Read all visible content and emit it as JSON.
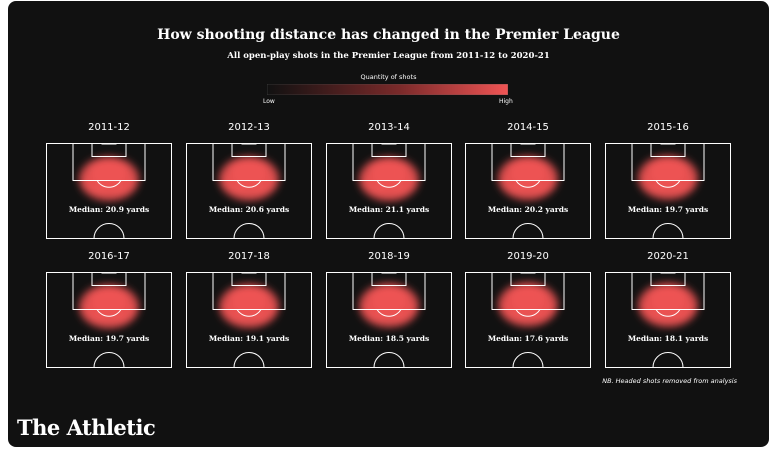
{
  "title": "How shooting distance has changed in the Premier League",
  "subtitle": "All open-play shots in the Premier League from 2011-12 to 2020-21",
  "legend": {
    "title": "Quantity of shots",
    "low_label": "Low",
    "high_label": "High",
    "color_low": "#111111",
    "color_high": "#f05454"
  },
  "chart_data": {
    "type": "heatmap",
    "panels": [
      {
        "season": "2011-12",
        "median_label": "Median: 20.9 yards",
        "median_yards": 20.9
      },
      {
        "season": "2012-13",
        "median_label": "Median: 20.6 yards",
        "median_yards": 20.6
      },
      {
        "season": "2013-14",
        "median_label": "Median: 21.1 yards",
        "median_yards": 21.1
      },
      {
        "season": "2014-15",
        "median_label": "Median: 20.2 yards",
        "median_yards": 20.2
      },
      {
        "season": "2015-16",
        "median_label": "Median: 19.7 yards",
        "median_yards": 19.7
      },
      {
        "season": "2016-17",
        "median_label": "Median: 19.7 yards",
        "median_yards": 19.7
      },
      {
        "season": "2017-18",
        "median_label": "Median: 19.1 yards",
        "median_yards": 19.1
      },
      {
        "season": "2018-19",
        "median_label": "Median: 18.5 yards",
        "median_yards": 18.5
      },
      {
        "season": "2019-20",
        "median_label": "Median: 17.6 yards",
        "median_yards": 17.6
      },
      {
        "season": "2020-21",
        "median_label": "Median: 18.1 yards",
        "median_yards": 18.1
      }
    ]
  },
  "note": "NB. Headed shots removed from analysis",
  "brand": "The Athletic",
  "colors": {
    "background": "#111111",
    "pitch_lines": "#ffffff",
    "heat": "#f05454"
  }
}
